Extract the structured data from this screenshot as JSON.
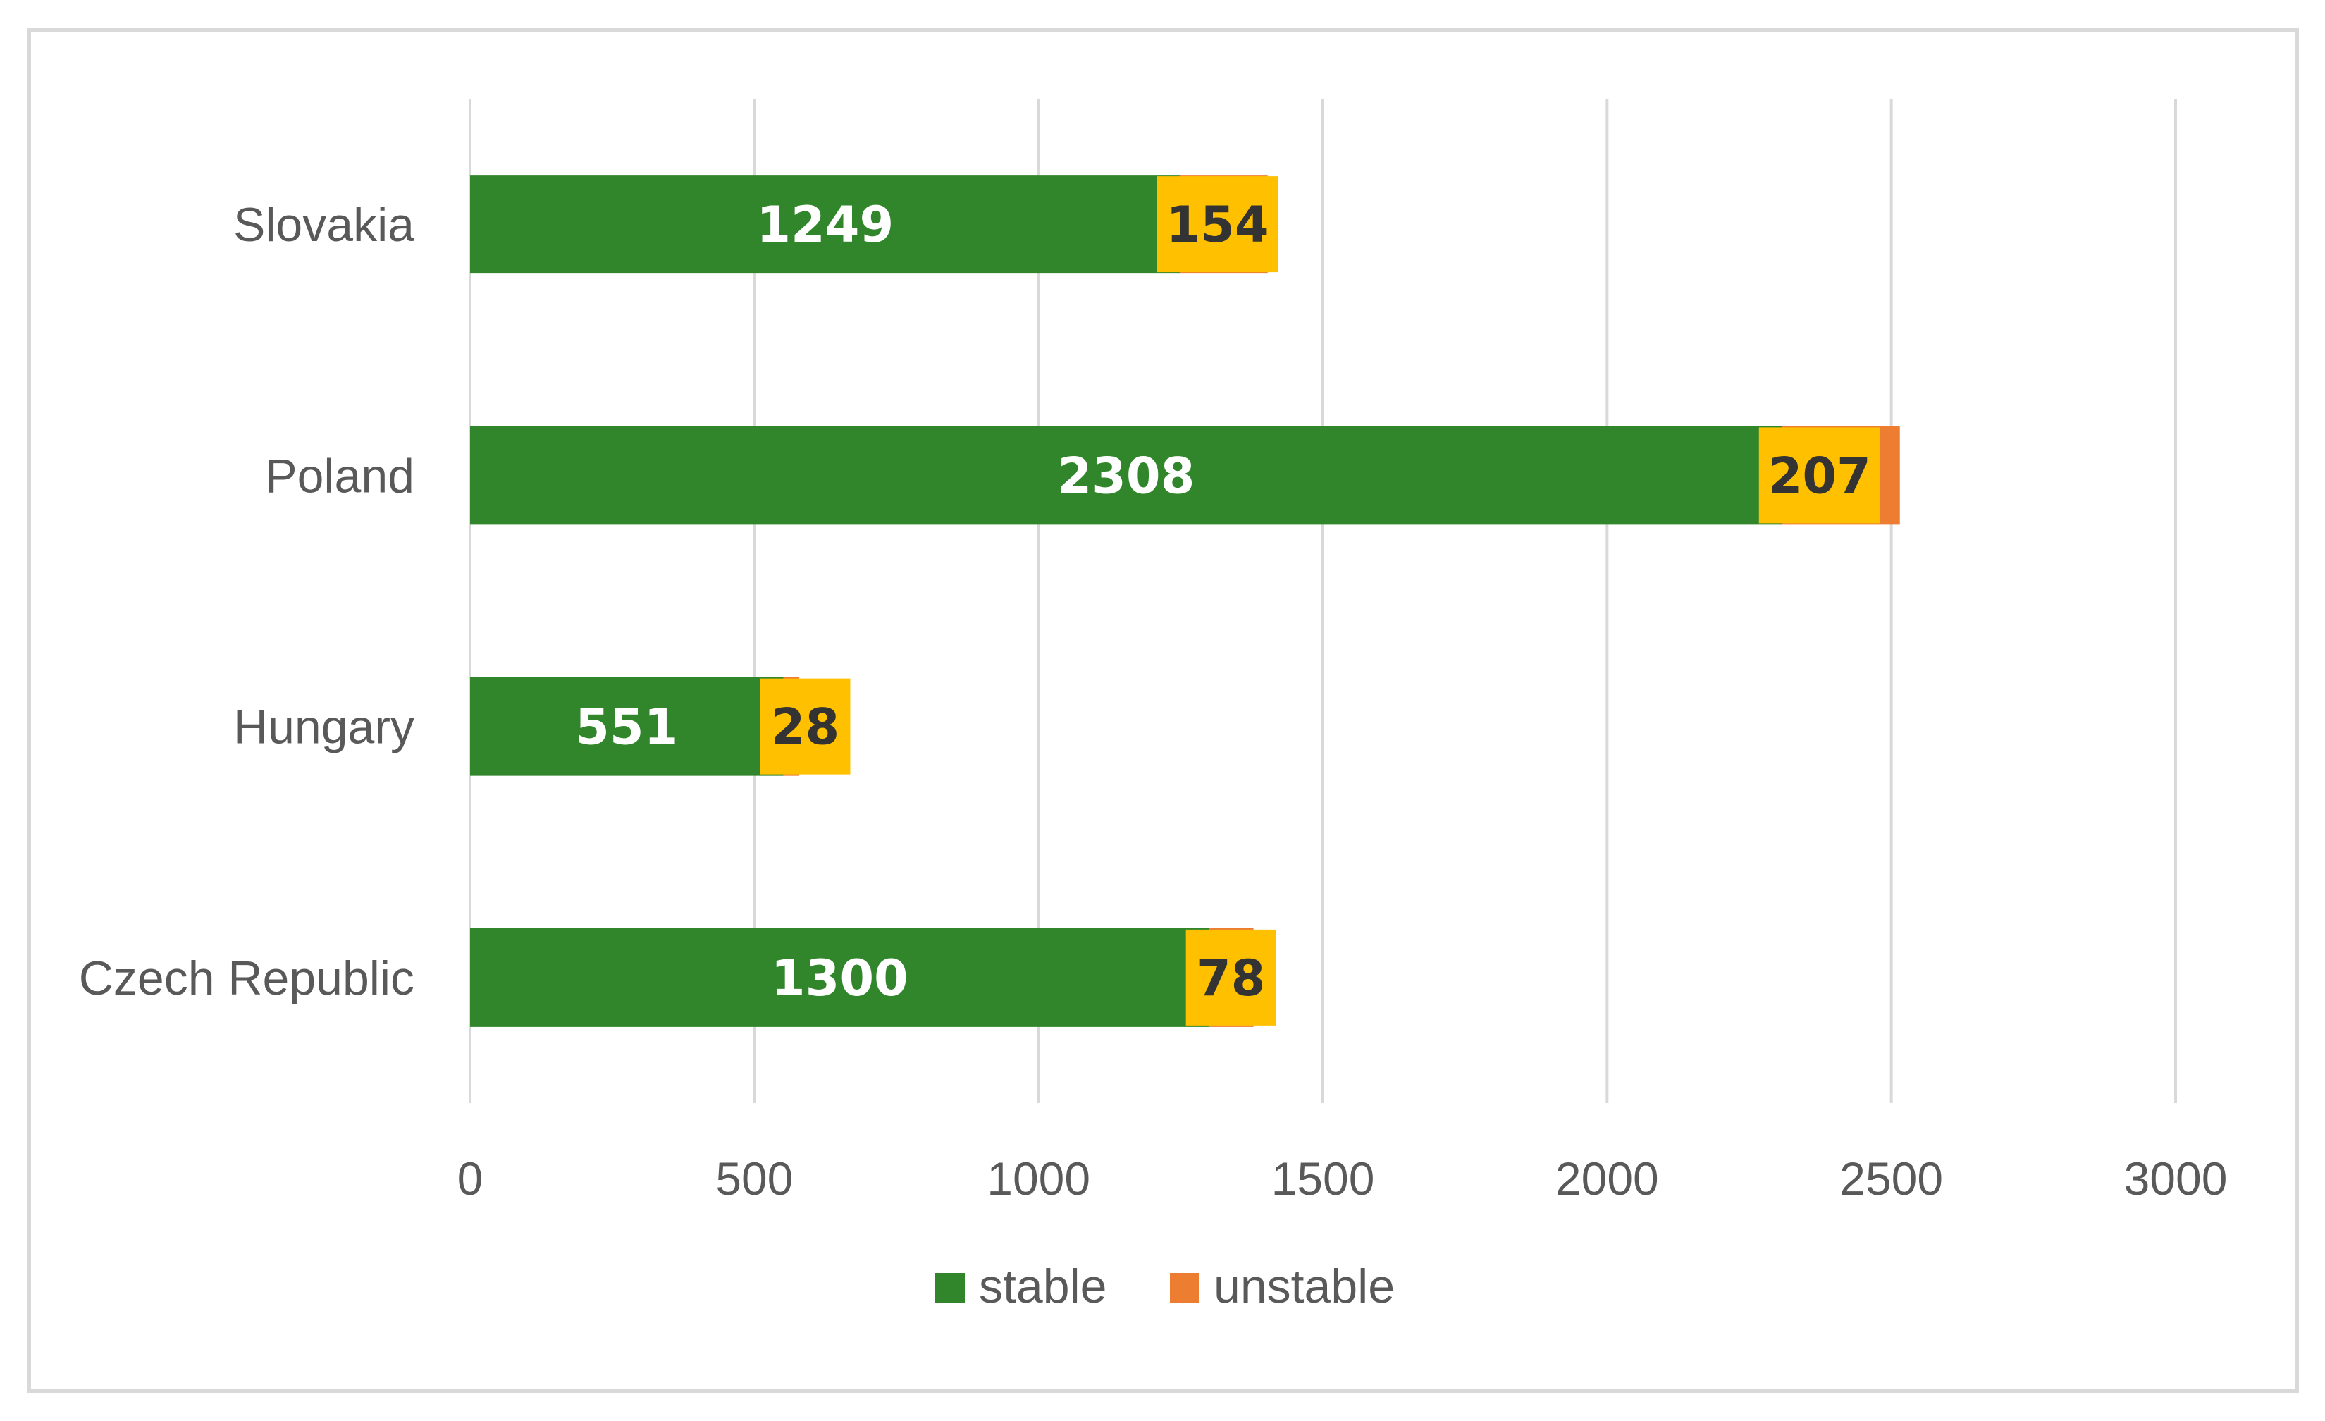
{
  "chart_data": {
    "type": "bar",
    "orientation": "horizontal",
    "stacked": true,
    "categories": [
      "Slovakia",
      "Poland",
      "Hungary",
      "Czech Republic"
    ],
    "series": [
      {
        "name": "stable",
        "values": [
          1249,
          2308,
          551,
          1300
        ],
        "color": "#31852b",
        "label_color": "#ffffff"
      },
      {
        "name": "unstable",
        "values": [
          154,
          207,
          28,
          78
        ],
        "color": "#ed7d31",
        "label_bg": "#ffc000",
        "label_color": "#333333"
      }
    ],
    "xlim": [
      0,
      3000
    ],
    "x_ticks": [
      0,
      500,
      1000,
      1500,
      2000,
      2500,
      3000
    ],
    "grid": "vertical",
    "legend": "bottom-center",
    "title": "",
    "xlabel": "",
    "ylabel": ""
  }
}
